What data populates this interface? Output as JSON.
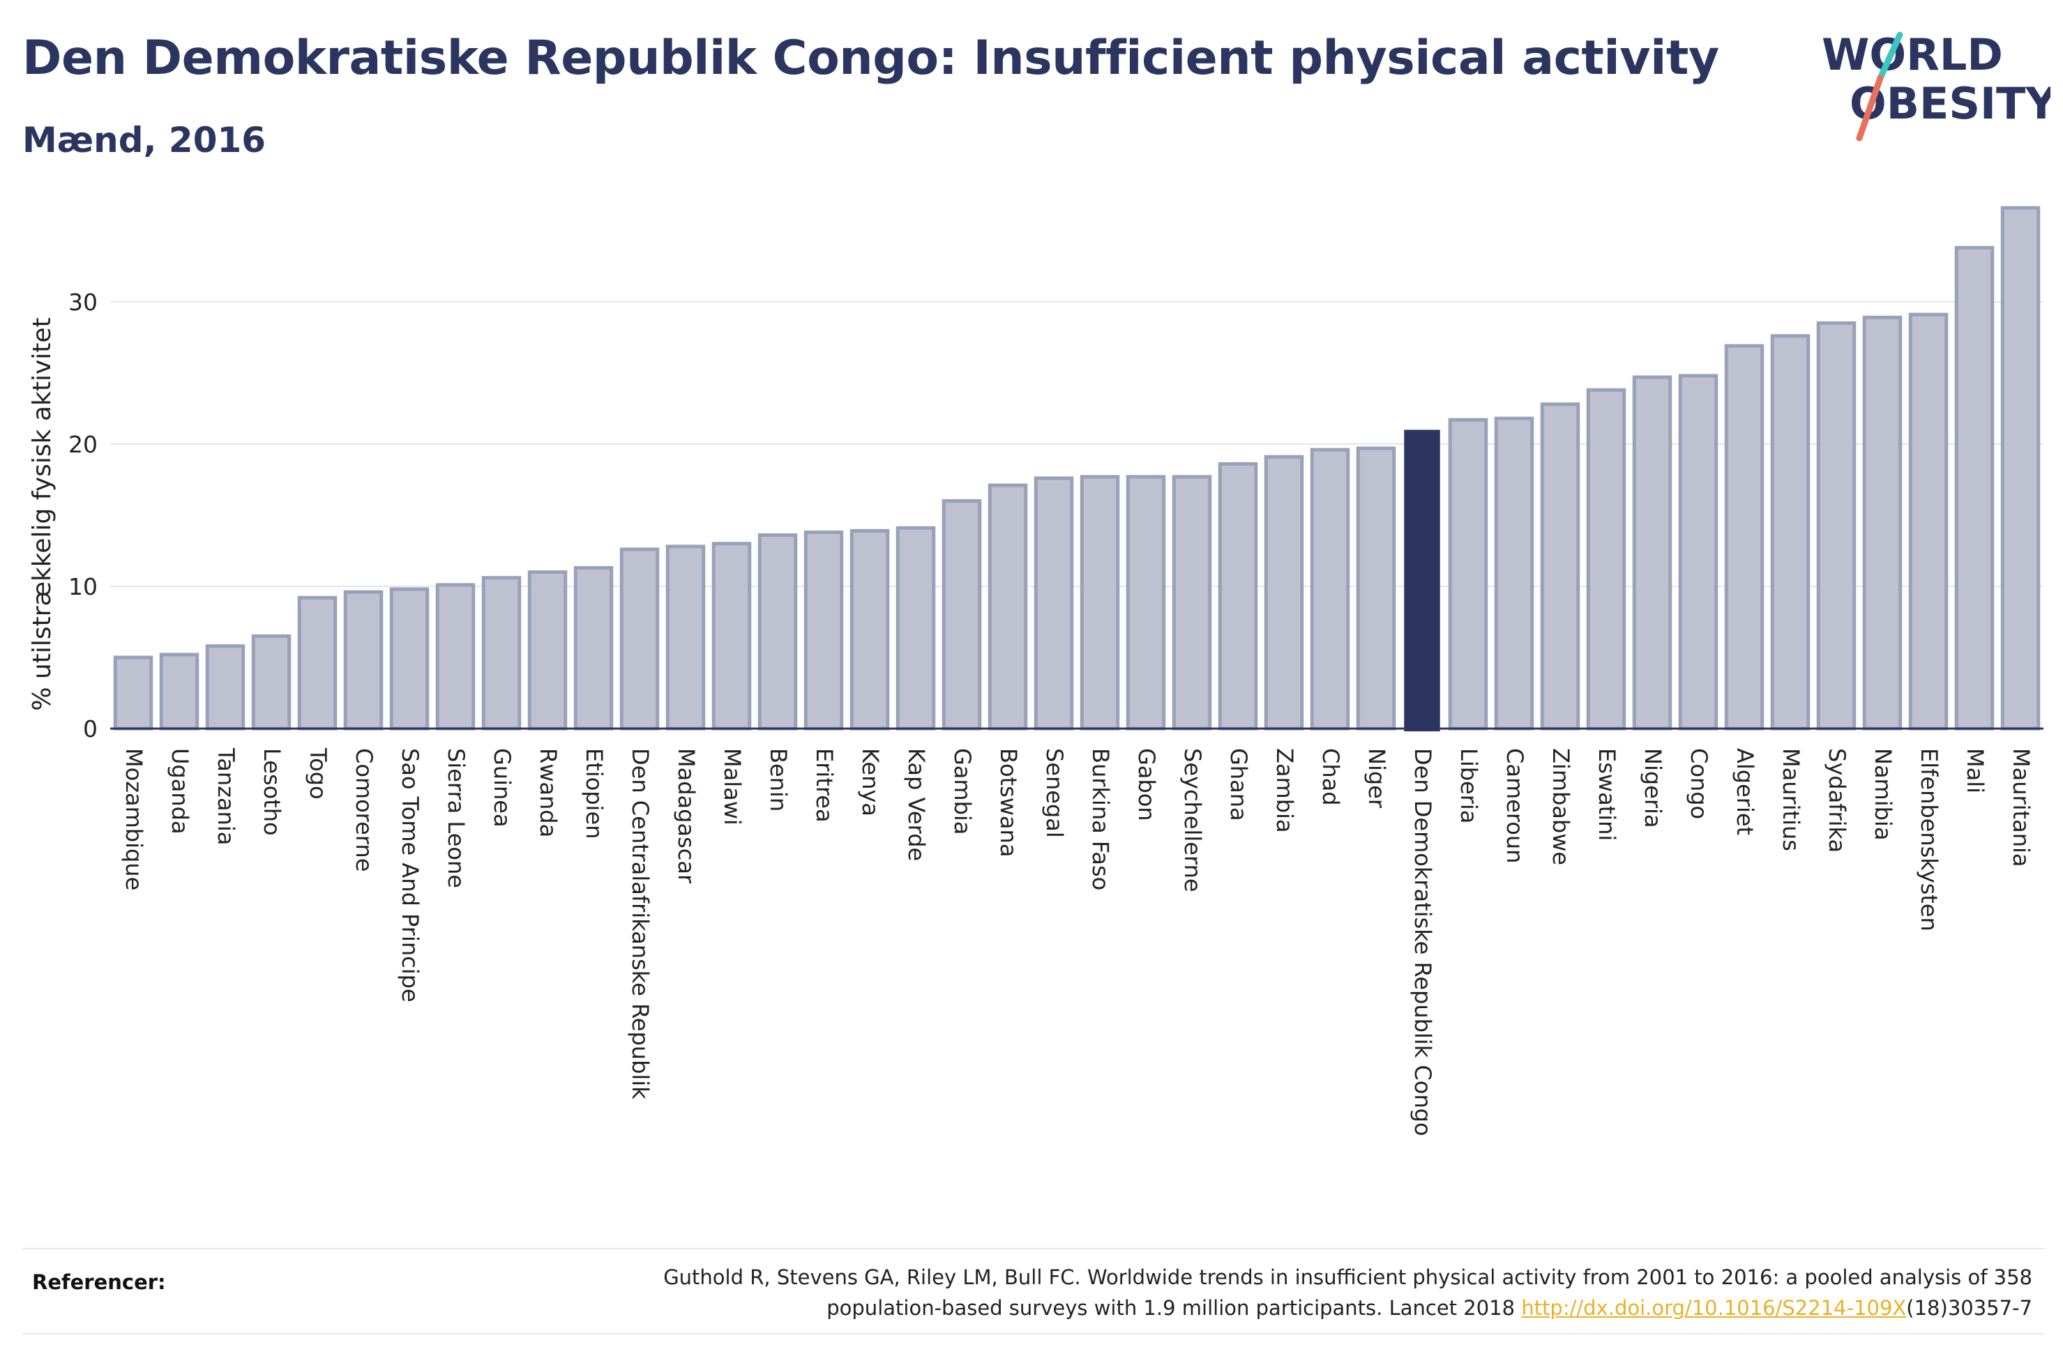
{
  "header": {
    "title": "Den Demokratiske Republik Congo: Insufficient physical activity",
    "subtitle": "Mænd, 2016"
  },
  "logo": {
    "line1": "WORLD",
    "line2": "OBESITY"
  },
  "footer": {
    "ref_label": "Referencer:",
    "ref_line1": "Guthold R, Stevens GA, Riley LM, Bull FC. Worldwide trends in insufficient physical activity from 2001 to 2016: a pooled analysis of 358",
    "ref_line2_pre": "population-based surveys with 1.9 million participants. Lancet 2018 ",
    "ref_link": "http://dx.doi.org/10.1016/S2214-109X",
    "ref_line2_post": "(18)30357-7"
  },
  "colors": {
    "bar_fill": "#bec2d0",
    "bar_stroke": "#9aa0b8",
    "highlight": "#2b3560",
    "title": "#2b3560",
    "link": "#e9b12b",
    "logo_teal": "#3ec5c0",
    "logo_coral": "#e8705e"
  },
  "chart_data": {
    "type": "bar",
    "title": "Den Demokratiske Republik Congo: Insufficient physical activity",
    "subtitle": "Mænd, 2016",
    "xlabel": "",
    "ylabel": "% utilstrækkelig fysisk aktivitet",
    "ylim": [
      0,
      37
    ],
    "yticks": [
      0,
      10,
      20,
      30
    ],
    "grid": true,
    "highlight": "Den Demokratiske Republik Congo",
    "categories": [
      "Mozambique",
      "Uganda",
      "Tanzania",
      "Lesotho",
      "Togo",
      "Comorerne",
      "Sao Tome And Principe",
      "Sierra Leone",
      "Guinea",
      "Rwanda",
      "Etiopien",
      "Den Centralafrikanske Republik",
      "Madagascar",
      "Malawi",
      "Benin",
      "Eritrea",
      "Kenya",
      "Kap Verde",
      "Gambia",
      "Botswana",
      "Senegal",
      "Burkina Faso",
      "Gabon",
      "Seychellerne",
      "Ghana",
      "Zambia",
      "Chad",
      "Niger",
      "Den Demokratiske Republik Congo",
      "Liberia",
      "Cameroun",
      "Zimbabwe",
      "Eswatini",
      "Nigeria",
      "Congo",
      "Algeriet",
      "Mauritius",
      "Sydafrika",
      "Namibia",
      "Elfenbenskysten",
      "Mali",
      "Mauritania"
    ],
    "values": [
      5.0,
      5.2,
      5.8,
      6.5,
      9.2,
      9.6,
      9.8,
      10.1,
      10.6,
      11.0,
      11.3,
      12.6,
      12.8,
      13.0,
      13.6,
      13.8,
      13.9,
      14.1,
      16.0,
      17.1,
      17.6,
      17.7,
      17.7,
      17.7,
      18.6,
      19.1,
      19.6,
      19.7,
      21.0,
      21.7,
      21.8,
      22.8,
      23.8,
      24.7,
      24.8,
      26.9,
      27.6,
      28.5,
      28.9,
      29.1,
      33.8,
      36.6
    ]
  }
}
